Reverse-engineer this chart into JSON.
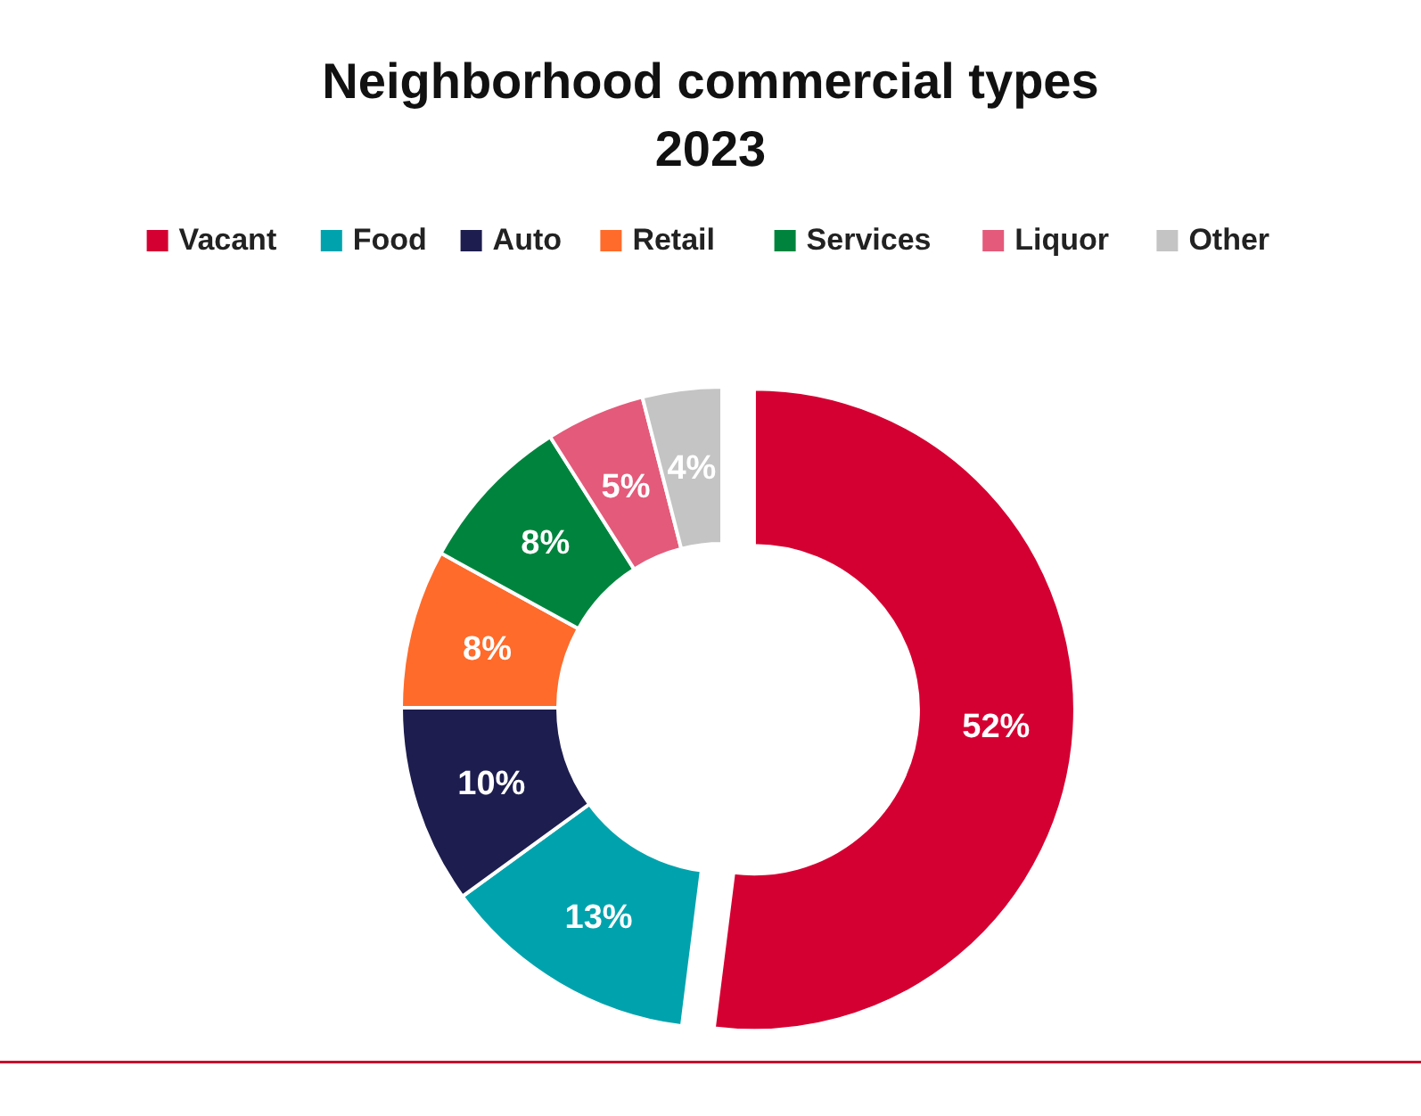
{
  "chart_data": {
    "type": "donut",
    "title": "Neighborhood commercial types\n2023",
    "categories": [
      "Vacant",
      "Food",
      "Auto",
      "Retail",
      "Services",
      "Liquor",
      "Other"
    ],
    "values": [
      52,
      13,
      10,
      8,
      8,
      5,
      4
    ],
    "colors": [
      "#d50032",
      "#00a3ad",
      "#1d1d4f",
      "#ff6b2b",
      "#00843d",
      "#e45a7a",
      "#c4c4c4"
    ],
    "value_labels": [
      "52%",
      "13%",
      "10%",
      "8%",
      "8%",
      "5%",
      "4%"
    ],
    "legend": "top"
  }
}
